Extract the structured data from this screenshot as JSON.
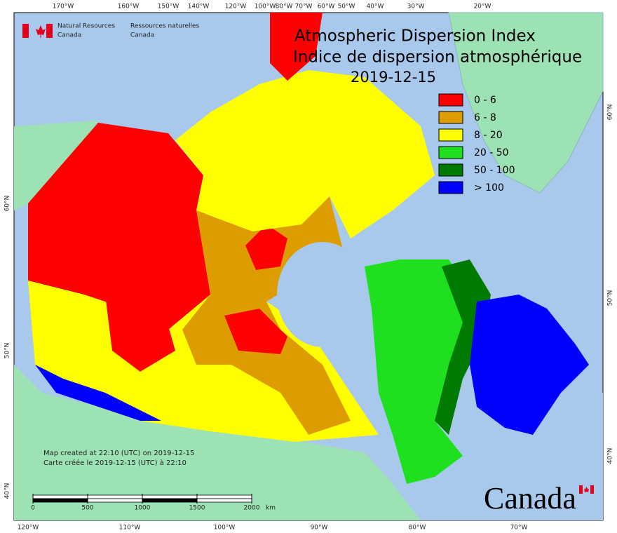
{
  "header": {
    "agency_en": [
      "Natural Resources",
      "Canada"
    ],
    "agency_fr": [
      "Ressources naturelles",
      "Canada"
    ]
  },
  "title": {
    "en": "Atmospheric Dispersion Index",
    "fr": "Indice de dispersion atmosphérique",
    "date": "2019-12-15"
  },
  "legend": [
    {
      "label": "0 - 6",
      "color": "#ff0000"
    },
    {
      "label": "6 - 8",
      "color": "#dd9c00"
    },
    {
      "label": "8 - 20",
      "color": "#ffff00"
    },
    {
      "label": "20 - 50",
      "color": "#1ee01e"
    },
    {
      "label": "50 - 100",
      "color": "#007a00"
    },
    {
      "label": "> 100",
      "color": "#0000ff"
    }
  ],
  "graticule": {
    "top": [
      "170°W",
      "160°W",
      "150°W",
      "140°W",
      "120°W",
      "100°W",
      "80°W",
      "70°W",
      "60°W",
      "50°W",
      "40°W",
      "30°W",
      "20°W"
    ],
    "bottom": [
      "120°W",
      "110°W",
      "100°W",
      "90°W",
      "80°W",
      "70°W"
    ],
    "left": [
      "60°N",
      "50°N",
      "40°N"
    ],
    "right": [
      "60°N",
      "50°N",
      "40°N"
    ]
  },
  "footer": {
    "created_en": "Map created at 22:10 (UTC) on 2019-12-15",
    "created_fr": "Carte créée le 2019-12-15 (UTC) à 22:10"
  },
  "scale_bar": {
    "ticks": [
      0,
      500,
      1000,
      1500,
      2000
    ],
    "unit": "km"
  },
  "wordmark": "Canada"
}
